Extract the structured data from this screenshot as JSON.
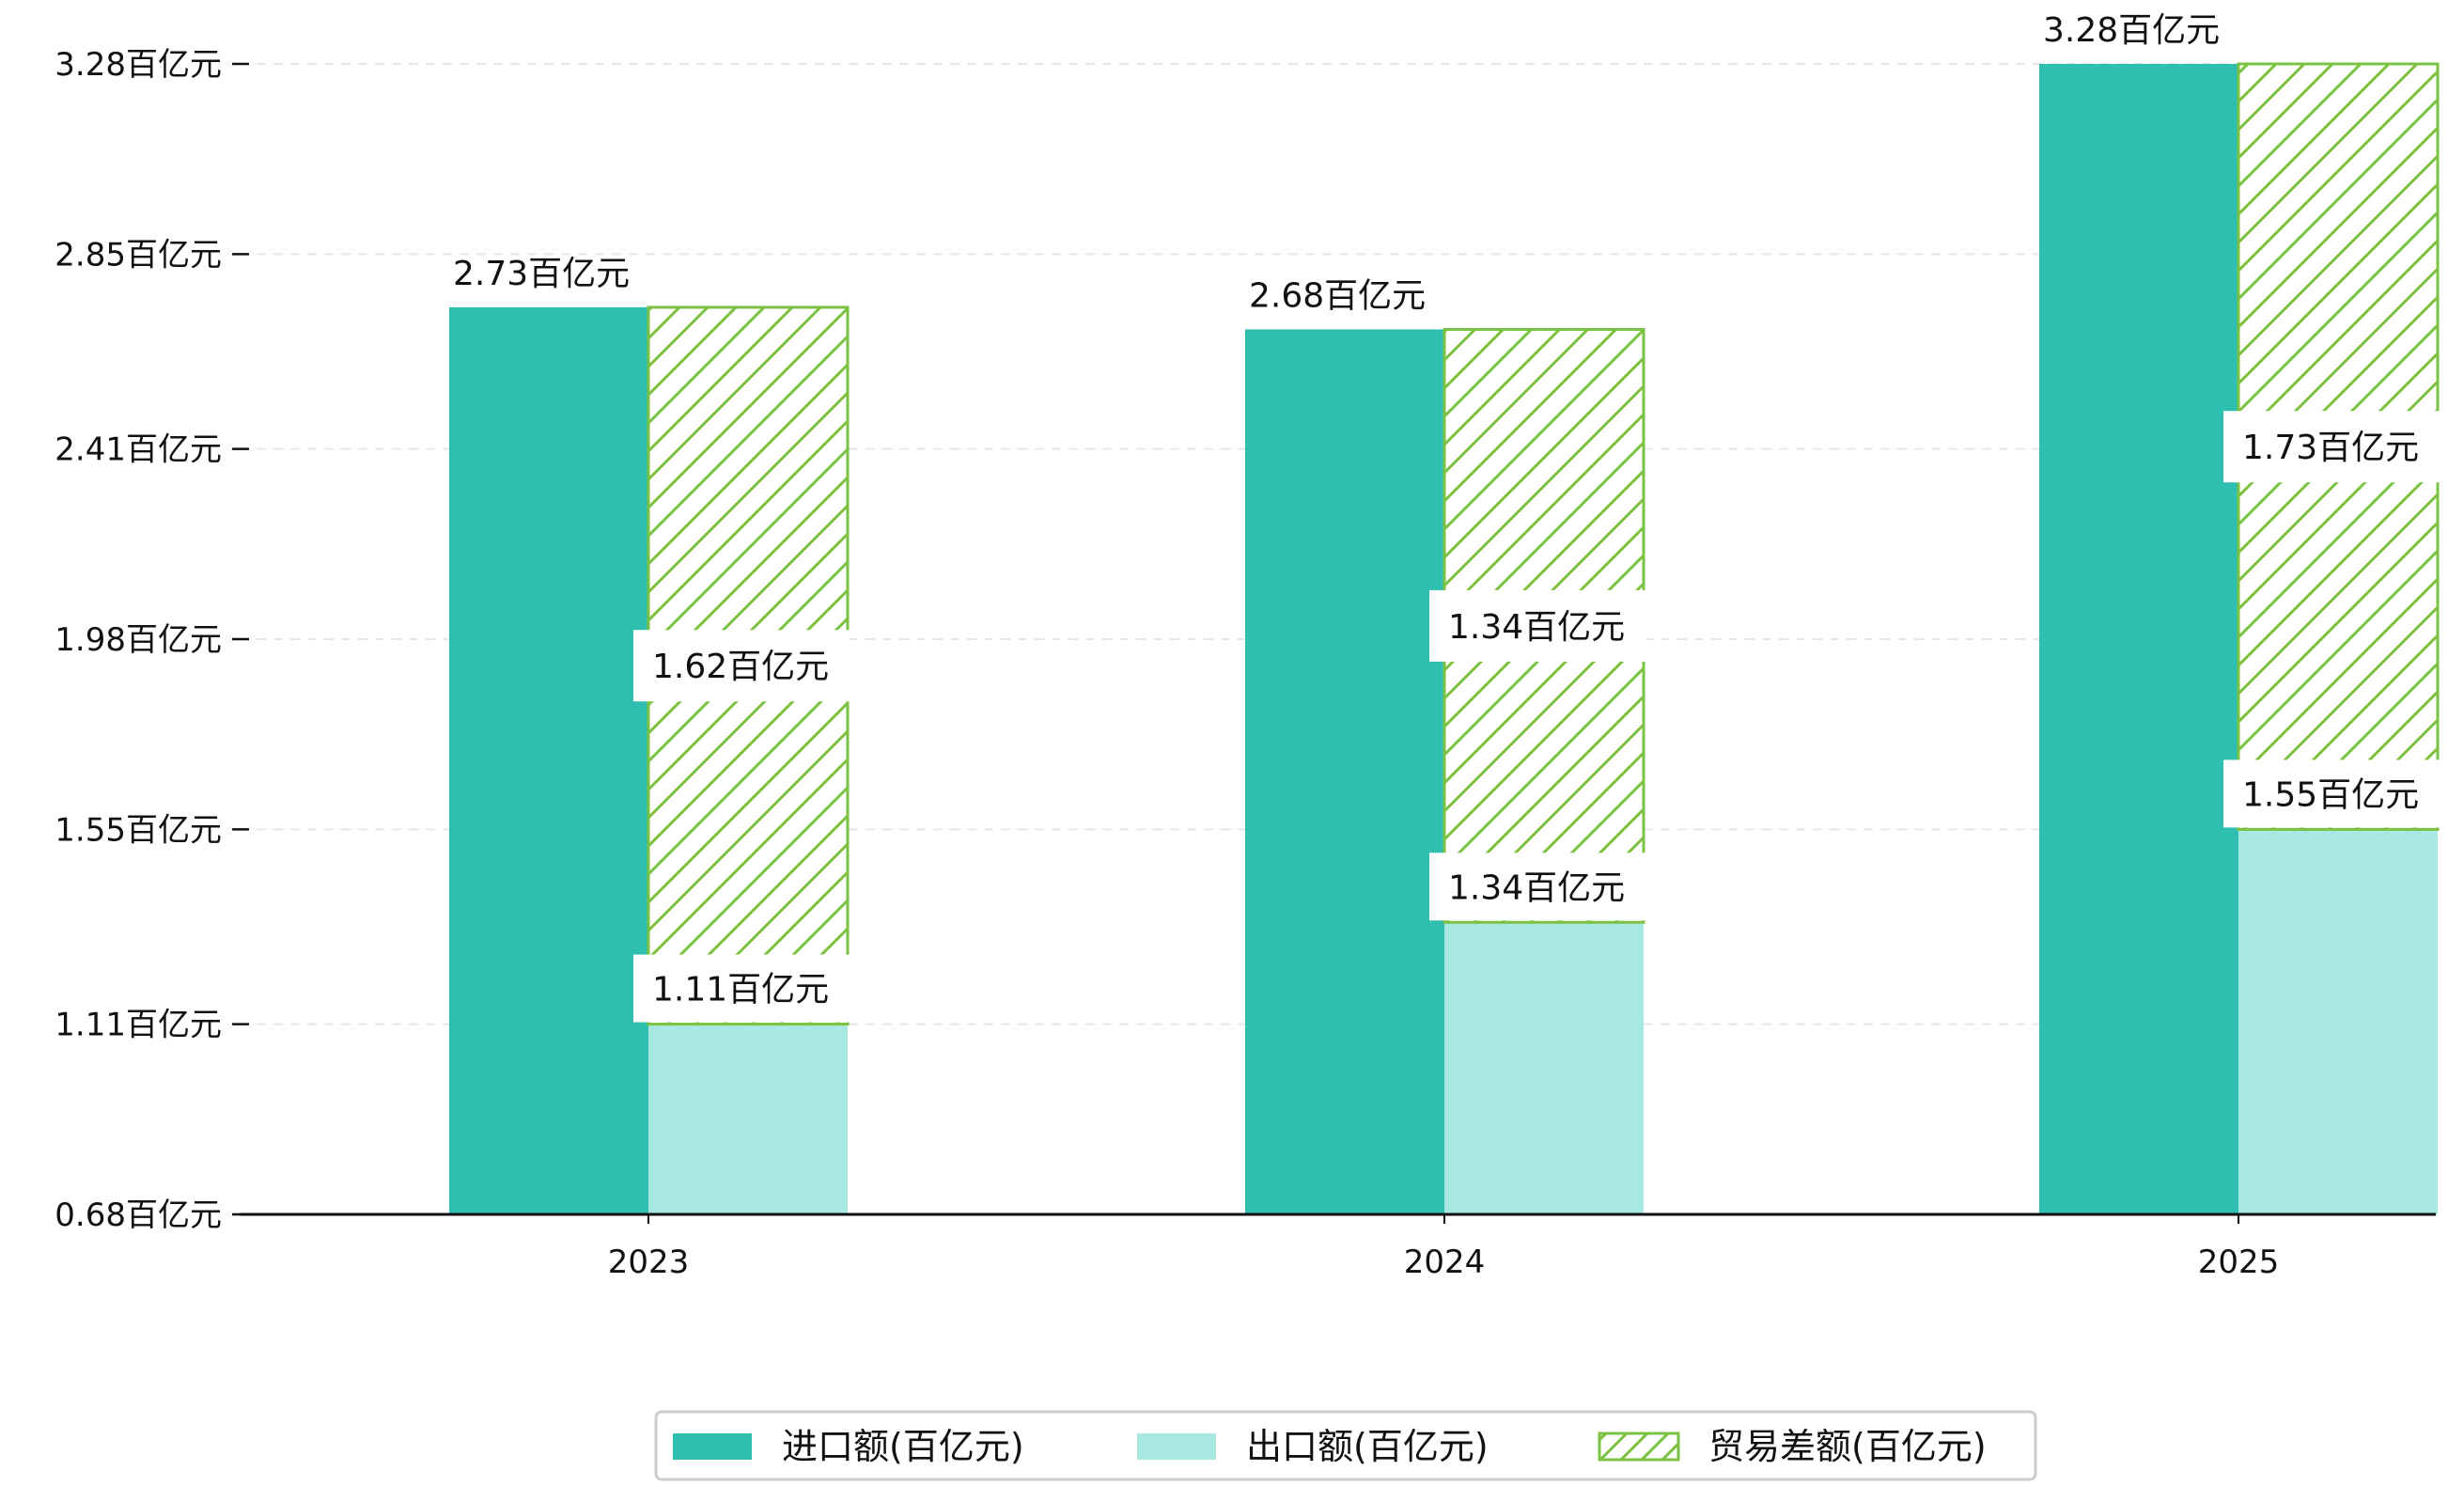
{
  "chart_data": {
    "type": "bar",
    "categories": [
      "2023",
      "2024",
      "2025"
    ],
    "series": [
      {
        "name": "进口额(百亿元)",
        "values": [
          2.73,
          2.68,
          3.28
        ],
        "labels": [
          "2.73百亿元",
          "2.68百亿元",
          "3.28百亿元"
        ],
        "color": "#2ebfb0",
        "style": "solid"
      },
      {
        "name": "出口额(百亿元)",
        "values": [
          1.11,
          1.34,
          1.55
        ],
        "labels": [
          "1.11百亿元",
          "1.34百亿元",
          "1.55百亿元"
        ],
        "color": "#a8e8e2",
        "style": "solid"
      },
      {
        "name": "贸易差额(百亿元)",
        "values": [
          1.62,
          1.34,
          1.73
        ],
        "labels": [
          "1.62百亿元",
          "1.34百亿元",
          "1.73百亿元"
        ],
        "color": "#7cc242",
        "style": "hatched",
        "stacked_on": "出口额(百亿元)"
      }
    ],
    "y_ticks": [
      0.68,
      1.11,
      1.55,
      1.98,
      2.41,
      2.85,
      3.28
    ],
    "y_tick_labels": [
      "0.68百亿元",
      "1.11百亿元",
      "1.55百亿元",
      "1.98百亿元",
      "2.41百亿元",
      "2.85百亿元",
      "3.28百亿元"
    ],
    "ylim": [
      0.68,
      3.28
    ],
    "grid": "horizontal dashed",
    "legend_position": "bottom-center",
    "title": "",
    "xlabel": "",
    "ylabel": ""
  }
}
